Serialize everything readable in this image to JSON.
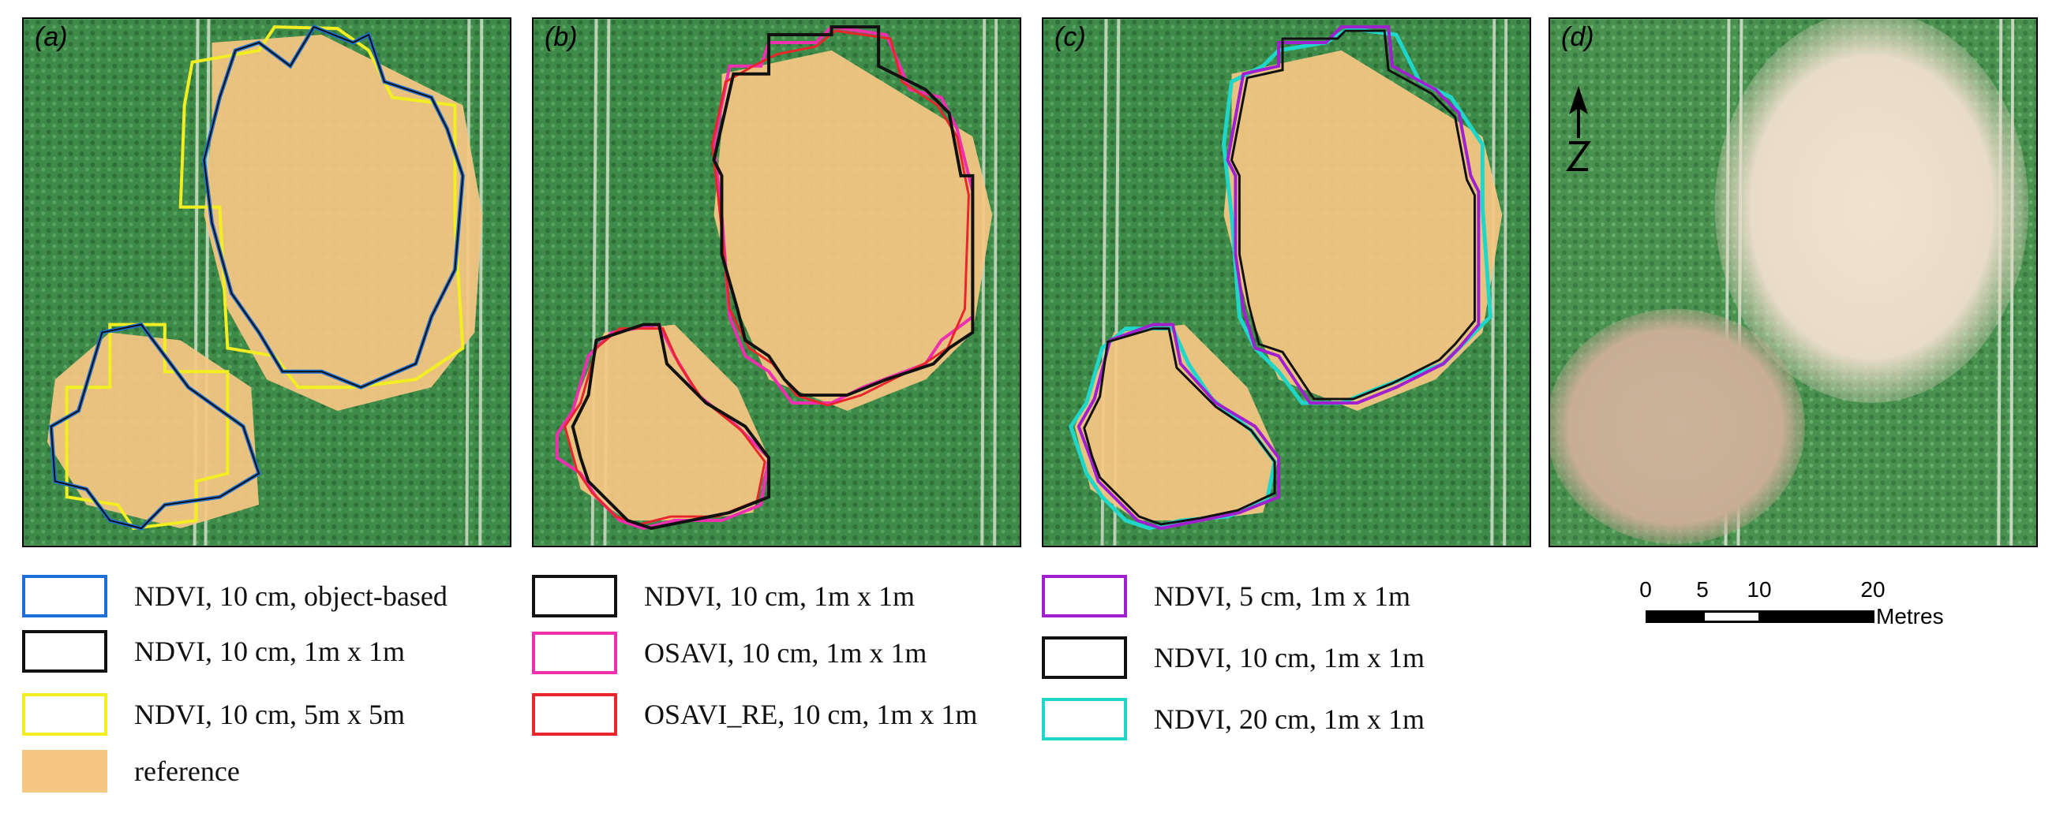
{
  "panels": [
    {
      "label": "(a)"
    },
    {
      "label": "(b)"
    },
    {
      "label": "(c)"
    },
    {
      "label": "(d)"
    }
  ],
  "legend": {
    "a": [
      {
        "text": "NDVI, 10 cm, object-based",
        "color": "#1e6fd6"
      },
      {
        "text": "NDVI, 10 cm, 1m x 1m",
        "color": "#111111"
      },
      {
        "text": "NDVI, 10 cm, 5m x 5m",
        "color": "#f2ee22"
      },
      {
        "text": "reference",
        "color": "#f6c783"
      }
    ],
    "b": [
      {
        "text": "NDVI, 10 cm, 1m x 1m",
        "color": "#111111"
      },
      {
        "text": "OSAVI, 10 cm, 1m x 1m",
        "color": "#ee2fb0"
      },
      {
        "text": "OSAVI_RE, 10 cm, 1m x 1m",
        "color": "#e8262b"
      }
    ],
    "c": [
      {
        "text": "NDVI, 5 cm, 1m x 1m",
        "color": "#a020d0"
      },
      {
        "text": "NDVI, 10 cm, 1m x 1m",
        "color": "#111111"
      },
      {
        "text": "NDVI, 20 cm, 1m x 1m",
        "color": "#1fd6c8"
      }
    ]
  },
  "scale": {
    "ticks": [
      "0",
      "5",
      "10",
      "20"
    ],
    "unit": "Metres"
  },
  "colors": {
    "crop": "#3e8a49",
    "crop_dark": "#2f7039",
    "reference": "#f6c783",
    "bare_soil": "#e6dcc6"
  }
}
